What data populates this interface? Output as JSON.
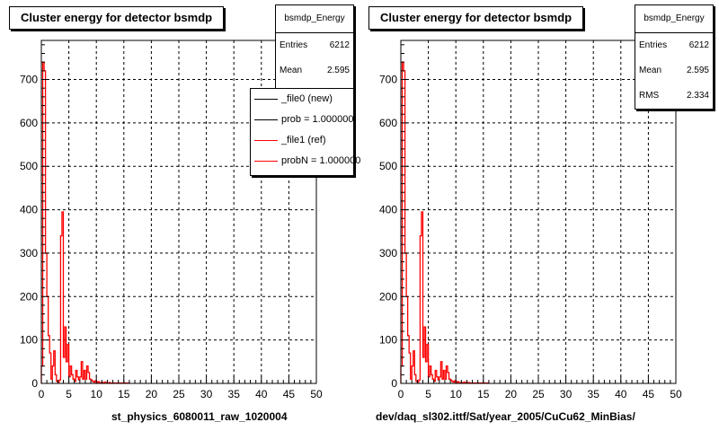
{
  "chart_data": [
    {
      "type": "line",
      "title": "Cluster energy for detector bsmdp",
      "xlabel": "st_physics_6080011_raw_1020004",
      "ylabel": "",
      "xlim": [
        0,
        50
      ],
      "ylim": [
        0,
        790
      ],
      "xticks": [
        "0",
        "5",
        "10",
        "15",
        "20",
        "25",
        "30",
        "35",
        "40",
        "45",
        "50"
      ],
      "yticks": [
        "0",
        "100",
        "200",
        "300",
        "400",
        "500",
        "600",
        "700"
      ],
      "grid": true,
      "stats": {
        "name": "bsmdp_Energy",
        "entries_label": "Entries",
        "entries": "6212",
        "mean_label": "Mean",
        "mean": "2.595"
      },
      "legend": [
        {
          "label": "_file0 (new)",
          "color": "#000000"
        },
        {
          "label": "prob = 1.000000",
          "color": "#000000"
        },
        {
          "label": "_file1 (ref)",
          "color": "#ff0000"
        },
        {
          "label": "probN = 1.000000",
          "color": "#ff0000"
        }
      ],
      "series": [
        {
          "color": "#ff0000",
          "bin_width": 0.25,
          "values": [
            40,
            740,
            720,
            300,
            200,
            110,
            70,
            10,
            40,
            75,
            20,
            5,
            3,
            8,
            340,
            395,
            60,
            130,
            50,
            90,
            15,
            40,
            20,
            10,
            5,
            30,
            15,
            8,
            15,
            50,
            10,
            30,
            10,
            40,
            25,
            10,
            8,
            5,
            3,
            6,
            2,
            4,
            1,
            2,
            2,
            1,
            3,
            1,
            1,
            2,
            1,
            1,
            1,
            1,
            1,
            1,
            1,
            1,
            1,
            1,
            1,
            1,
            1,
            1
          ]
        }
      ]
    },
    {
      "type": "line",
      "title": "Cluster energy for detector bsmdp",
      "xlabel": "dev/daq_sl302.ittf/Sat/year_2005/CuCu62_MinBias/",
      "ylabel": "",
      "xlim": [
        0,
        50
      ],
      "ylim": [
        0,
        790
      ],
      "xticks": [
        "0",
        "5",
        "10",
        "15",
        "20",
        "25",
        "30",
        "35",
        "40",
        "45",
        "50"
      ],
      "yticks": [
        "0",
        "100",
        "200",
        "300",
        "400",
        "500",
        "600",
        "700"
      ],
      "grid": true,
      "stats": {
        "name": "bsmdp_Energy",
        "entries_label": "Entries",
        "entries": "6212",
        "mean_label": "Mean",
        "mean": "2.595",
        "rms_label": "RMS",
        "rms": "2.334"
      },
      "series": [
        {
          "color": "#ff0000",
          "bin_width": 0.25,
          "values": [
            40,
            740,
            720,
            300,
            200,
            110,
            70,
            10,
            40,
            75,
            20,
            5,
            3,
            8,
            340,
            395,
            60,
            130,
            50,
            90,
            15,
            40,
            20,
            10,
            5,
            30,
            15,
            8,
            15,
            50,
            10,
            30,
            10,
            40,
            25,
            10,
            8,
            5,
            3,
            6,
            2,
            4,
            1,
            2,
            2,
            1,
            3,
            1,
            1,
            2,
            1,
            1,
            1,
            1,
            1,
            1,
            1,
            1,
            1,
            1,
            1,
            1,
            1,
            1
          ]
        }
      ]
    }
  ]
}
